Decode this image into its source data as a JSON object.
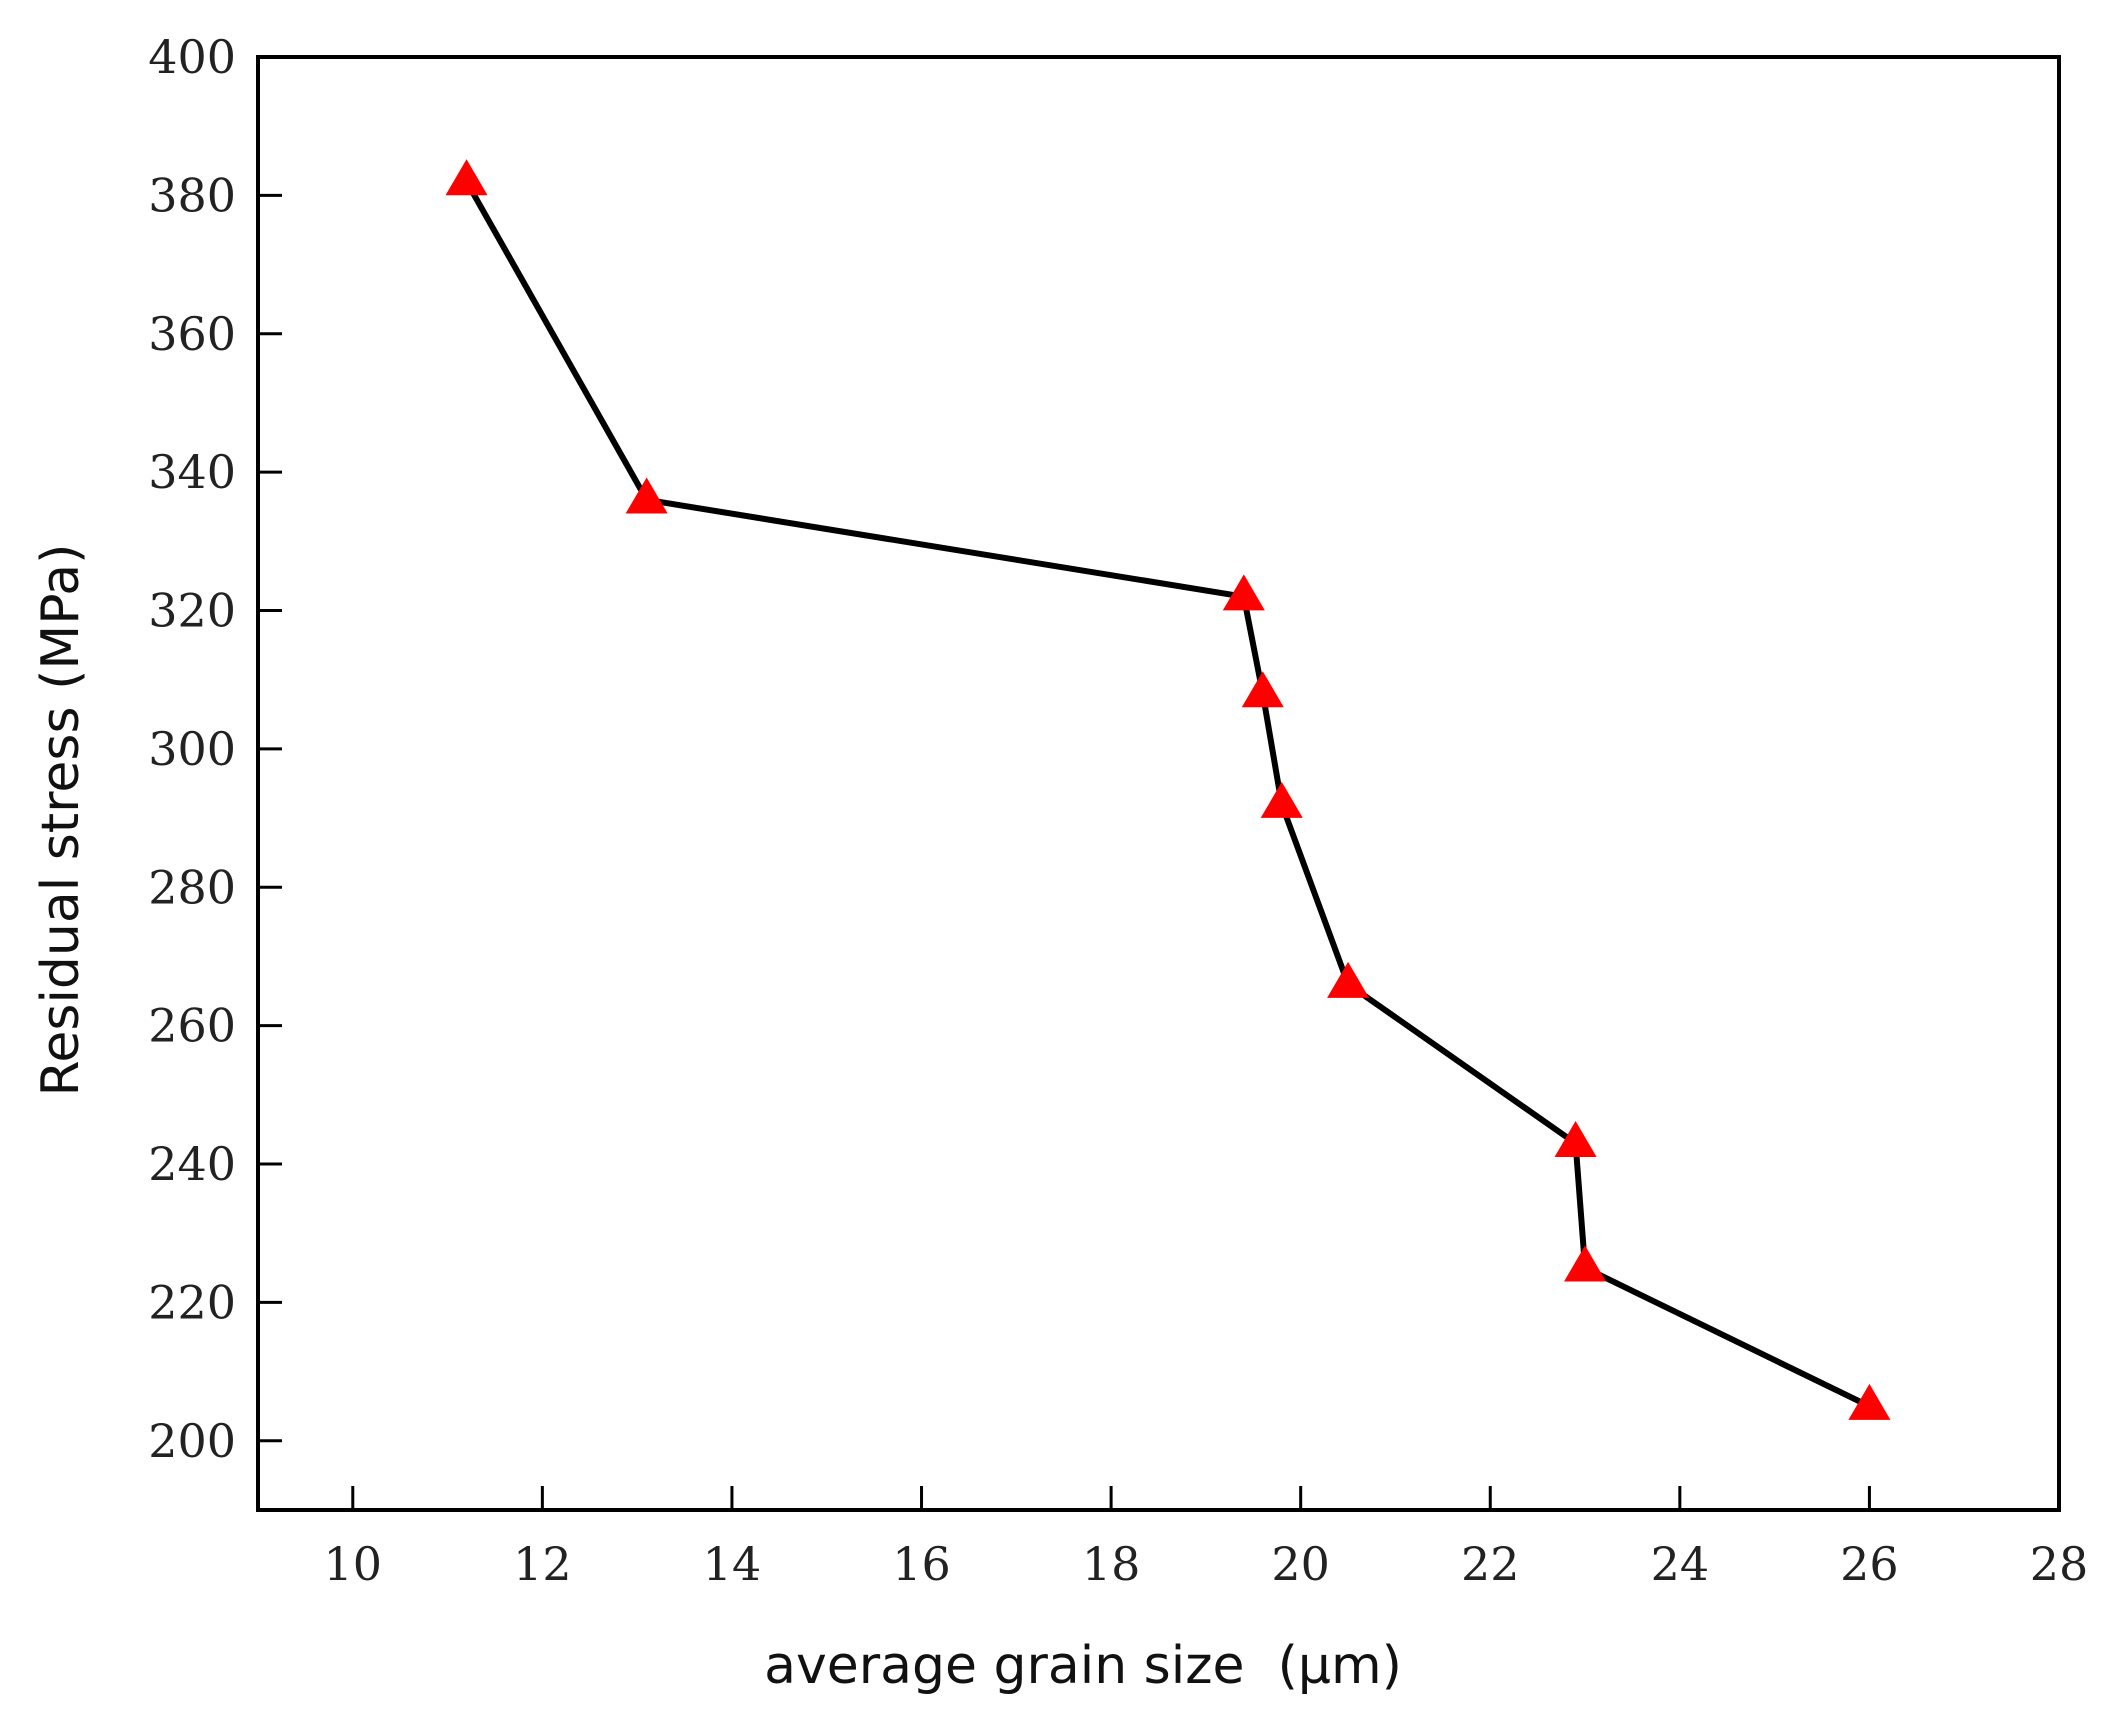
{
  "chart_data": {
    "type": "line",
    "title": "",
    "xlabel": "average grain size  (μm)",
    "ylabel": "Residual stress (MPa)",
    "xlim": [
      9,
      28
    ],
    "ylim": [
      190,
      400
    ],
    "xticks": [
      10,
      12,
      14,
      16,
      18,
      20,
      22,
      24,
      26,
      28
    ],
    "yticks": [
      200,
      220,
      240,
      260,
      280,
      300,
      320,
      340,
      360,
      380,
      400
    ],
    "grid": false,
    "series": [
      {
        "name": "Residual stress",
        "marker": "triangle",
        "line_color": "#000000",
        "marker_color": "#ff0000",
        "x": [
          11.2,
          13.1,
          19.4,
          19.6,
          19.8,
          20.5,
          22.9,
          23.0,
          26.0
        ],
        "y": [
          382,
          336,
          322,
          308,
          292,
          266,
          243,
          225,
          205
        ]
      }
    ]
  }
}
